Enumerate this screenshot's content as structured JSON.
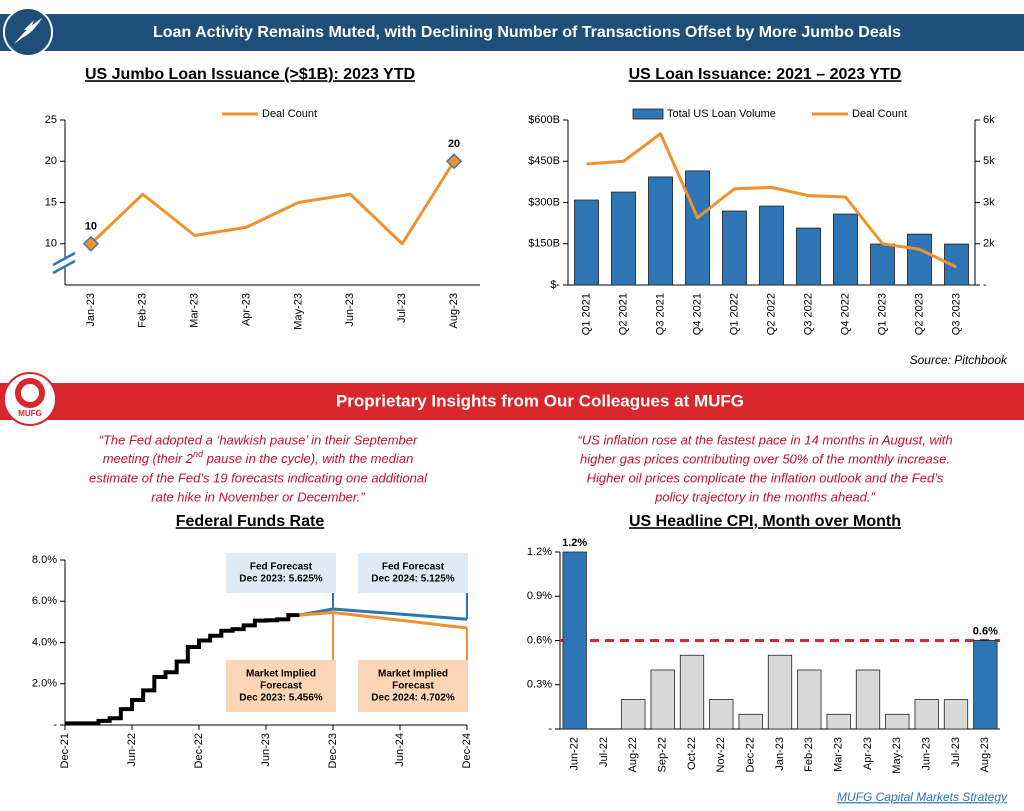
{
  "header": {
    "title": "Loan Activity Remains Muted, with Declining Number of Transactions Offset by More Jumbo Deals"
  },
  "chart_data": [
    {
      "type": "line",
      "title": "US Jumbo Loan Issuance (>$1B): 2023 YTD",
      "categories": [
        "Jan-23",
        "Feb-23",
        "Mar-23",
        "Apr-23",
        "May-23",
        "Jun-23",
        "Jul-23",
        "Aug-23"
      ],
      "series": [
        {
          "name": "Deal Count",
          "color": "#f0922b",
          "values": [
            10,
            16,
            11,
            12,
            15,
            16,
            10,
            20
          ],
          "value_labels": [
            "10",
            null,
            null,
            null,
            null,
            null,
            null,
            "20"
          ]
        }
      ],
      "ylim": [
        5,
        25
      ],
      "yticks": [
        10,
        15,
        20,
        25
      ],
      "axis_break": true,
      "legend": "top"
    },
    {
      "type": "bar",
      "title": "US Loan Issuance: 2021 – 2023 YTD",
      "categories": [
        "Q1 2021",
        "Q2 2021",
        "Q3 2021",
        "Q4 2021",
        "Q1 2022",
        "Q2 2022",
        "Q3 2022",
        "Q4 2022",
        "Q1 2023",
        "Q2 2023",
        "Q3 2023"
      ],
      "series": [
        {
          "name": "Total US Loan Volume",
          "color": "#2e75b6",
          "values": [
            309,
            338,
            393,
            415,
            269,
            287,
            207,
            258,
            149,
            185,
            149
          ]
        },
        {
          "name": "Deal Count",
          "color": "#f0922b",
          "type": "line",
          "axis": "y2",
          "values": [
            4400,
            4500,
            5500,
            2450,
            3500,
            3550,
            3250,
            3200,
            1500,
            1300,
            650
          ]
        }
      ],
      "ylim": [
        0,
        600
      ],
      "yticks": [
        {
          "value": 0,
          "label": "$-"
        },
        {
          "value": 150,
          "label": "$150B"
        },
        {
          "value": 300,
          "label": "$300B"
        },
        {
          "value": 450,
          "label": "$450B"
        },
        {
          "value": 600,
          "label": "$600B"
        }
      ],
      "y2lim": [
        0,
        6000
      ],
      "y2ticks": [
        {
          "value": 0,
          "label": "-"
        },
        {
          "value": 1500,
          "label": "2k"
        },
        {
          "value": 3000,
          "label": "3k"
        },
        {
          "value": 4500,
          "label": "5k"
        },
        {
          "value": 6000,
          "label": "6k"
        }
      ],
      "legend": "top"
    },
    {
      "type": "line",
      "title": "Federal Funds Rate",
      "xlim": [
        "2021-12",
        "2024-12"
      ],
      "xticks": [
        {
          "value": "2021-12",
          "label": "Dec-21"
        },
        {
          "value": "2022-06",
          "label": "Jun-22"
        },
        {
          "value": "2022-12",
          "label": "Dec-22"
        },
        {
          "value": "2023-06",
          "label": "Jun-23"
        },
        {
          "value": "2023-12",
          "label": "Dec-23"
        },
        {
          "value": "2024-06",
          "label": "Jun-24"
        },
        {
          "value": "2024-12",
          "label": "Dec-24"
        }
      ],
      "ylim": [
        0,
        8
      ],
      "yticks": [
        {
          "value": 0,
          "label": "-"
        },
        {
          "value": 2,
          "label": "2.0%"
        },
        {
          "value": 4,
          "label": "4.0%"
        },
        {
          "value": 6,
          "label": "6.0%"
        },
        {
          "value": 8,
          "label": "8.0%"
        }
      ],
      "series": [
        {
          "color": "#000000",
          "step": true,
          "x": [
            "2021-12",
            "2022-01",
            "2022-02",
            "2022-03",
            "2022-04",
            "2022-05",
            "2022-06",
            "2022-07",
            "2022-08",
            "2022-09",
            "2022-10",
            "2022-11",
            "2022-12",
            "2023-01",
            "2023-02",
            "2023-03",
            "2023-04",
            "2023-05",
            "2023-06",
            "2023-07",
            "2023-08",
            "2023-09"
          ],
          "values": [
            0.08,
            0.08,
            0.08,
            0.2,
            0.33,
            0.77,
            1.21,
            1.68,
            2.33,
            2.56,
            3.08,
            3.78,
            4.1,
            4.33,
            4.57,
            4.65,
            4.83,
            5.06,
            5.08,
            5.12,
            5.33,
            5.33
          ]
        },
        {
          "color": "#2e75b6",
          "x": [
            "2023-09",
            "2023-12",
            "2024-12"
          ],
          "values": [
            5.33,
            5.625,
            5.125
          ]
        },
        {
          "color": "#f0922b",
          "x": [
            "2023-09",
            "2023-12",
            "2024-12"
          ],
          "values": [
            5.33,
            5.456,
            4.702
          ]
        }
      ],
      "annotations": [
        {
          "lines": [
            "Fed Forecast",
            "Dec 2023: 5.625%"
          ],
          "color": "#deebf7"
        },
        {
          "lines": [
            "Fed Forecast",
            "Dec 2024: 5.125%"
          ],
          "color": "#deebf7"
        },
        {
          "lines": [
            "Market Implied",
            "Forecast",
            "Dec 2023: 5.456%"
          ],
          "color": "#fbd5b5"
        },
        {
          "lines": [
            "Market Implied",
            "Forecast",
            "Dec 2024: 4.702%"
          ],
          "color": "#fbd5b5"
        }
      ]
    },
    {
      "type": "bar",
      "title": "US Headline CPI, Month over Month",
      "categories": [
        "Jun-22",
        "Jul-22",
        "Aug-22",
        "Sep-22",
        "Oct-22",
        "Nov-22",
        "Dec-22",
        "Jan-23",
        "Feb-23",
        "Mar-23",
        "Apr-23",
        "May-23",
        "Jun-23",
        "Jul-23",
        "Aug-23"
      ],
      "values": [
        1.2,
        0,
        0.2,
        0.4,
        0.5,
        0.2,
        0.1,
        0.5,
        0.4,
        0.1,
        0.4,
        0.1,
        0.2,
        0.2,
        0.6
      ],
      "colors": [
        "#2e75b6",
        "#d9d9d9",
        "#d9d9d9",
        "#d9d9d9",
        "#d9d9d9",
        "#d9d9d9",
        "#d9d9d9",
        "#d9d9d9",
        "#d9d9d9",
        "#d9d9d9",
        "#d9d9d9",
        "#d9d9d9",
        "#d9d9d9",
        "#d9d9d9",
        "#2e75b6"
      ],
      "value_labels": [
        "1.2%",
        null,
        null,
        null,
        null,
        null,
        null,
        null,
        null,
        null,
        null,
        null,
        null,
        null,
        "0.6%"
      ],
      "ylim": [
        0,
        1.2
      ],
      "yticks": [
        {
          "value": 0,
          "label": "-"
        },
        {
          "value": 0.3,
          "label": "0.3%"
        },
        {
          "value": 0.6,
          "label": "0.6%"
        },
        {
          "value": 0.9,
          "label": "0.9%"
        },
        {
          "value": 1.2,
          "label": "1.2%"
        }
      ],
      "reference_line": {
        "value": 0.6,
        "color": "#d62a2a",
        "dashed": true
      }
    }
  ],
  "source": "Source: Pitchbook",
  "section": {
    "title": "Proprietary Insights from Our Colleagues at MUFG",
    "logo_text": "MUFG"
  },
  "quotes": [
    {
      "lines": [
        "“The Fed adopted a ‘hawkish pause’ in their September",
        {
          "text": "meeting (their 2",
          "sup": "nd",
          "rest": " pause in the cycle), with the median"
        },
        "estimate of the Fed’s 19 forecasts indicating one additional",
        "rate hike in November or December.”"
      ]
    },
    {
      "lines": [
        "“US inflation rose at the fastest pace in 14 months in August, with",
        "higher gas prices contributing over 50% of the monthly increase.",
        "Higher oil prices complicate the inflation outlook and the Fed’s",
        "policy trajectory in the months ahead.”"
      ]
    }
  ],
  "footer": {
    "link": "MUFG Capital Markets Strategy"
  }
}
